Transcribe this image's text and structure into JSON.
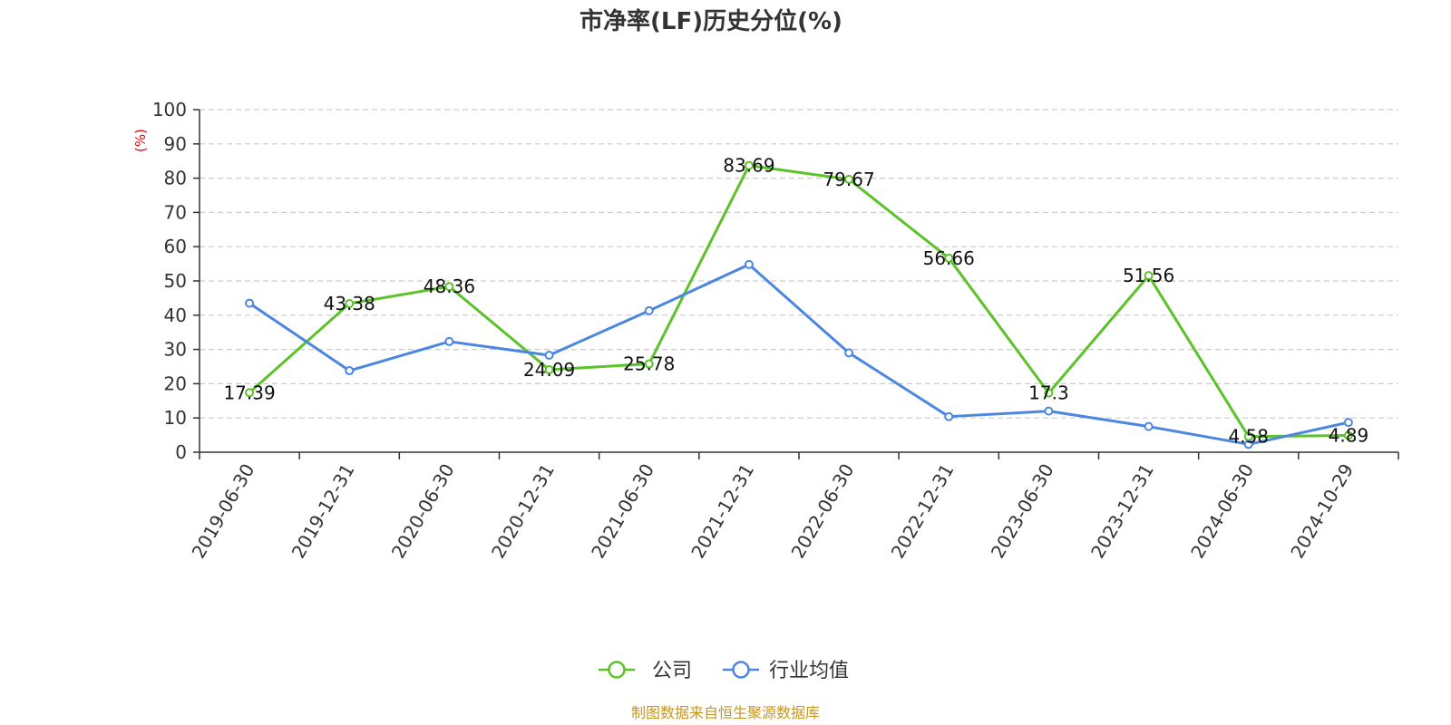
{
  "chart_data": {
    "type": "line",
    "title": "市净率(LF)历史分位(%)",
    "ylabel": "(%)",
    "ylim": [
      0,
      100
    ],
    "yticks": [
      0,
      10,
      20,
      30,
      40,
      50,
      60,
      70,
      80,
      90,
      100
    ],
    "x": [
      "2019-06-30",
      "2019-12-31",
      "2020-06-30",
      "2020-12-31",
      "2021-06-30",
      "2021-12-31",
      "2022-06-30",
      "2022-12-31",
      "2023-06-30",
      "2023-12-31",
      "2024-06-30",
      "2024-10-29"
    ],
    "grid": true,
    "legend_position": "bottom",
    "series": [
      {
        "name": "公司",
        "color": "#5bc229",
        "values": [
          17.39,
          43.38,
          48.36,
          24.09,
          25.78,
          83.69,
          79.67,
          56.66,
          17.3,
          51.56,
          4.58,
          4.89
        ],
        "data_labels": [
          "17.39",
          "43.38",
          "48.36",
          "24.09",
          "25.78",
          "83.69",
          "79.67",
          "56.66",
          "17.3",
          "51.56",
          "4.58",
          "4.89"
        ]
      },
      {
        "name": "行业均值",
        "color": "#4b86e0",
        "values": [
          43.5,
          23.8,
          32.3,
          28.3,
          41.3,
          54.8,
          29.0,
          10.4,
          12.0,
          7.5,
          2.3,
          8.7
        ]
      }
    ]
  },
  "colors": {
    "ylabel": "#e60000",
    "source": "#c8961e",
    "axis": "#333333",
    "grid": "#cccccc"
  },
  "source_text": "制图数据来自恒生聚源数据库"
}
